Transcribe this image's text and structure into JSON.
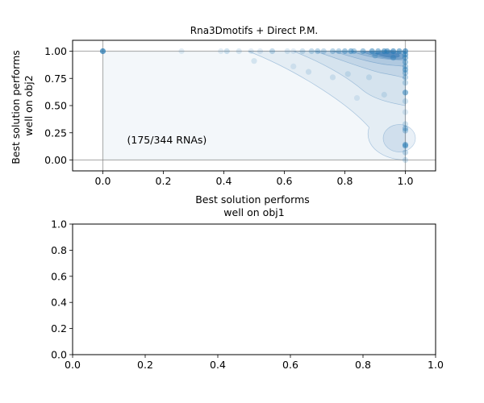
{
  "chart_data": [
    {
      "type": "scatter",
      "title": "Rna3Dmotifs + Direct P.M.",
      "xlabel": [
        "Best solution performs",
        "well on obj1"
      ],
      "ylabel": [
        "Best solution performs",
        "well on obj2"
      ],
      "xlim": [
        -0.1,
        1.1
      ],
      "ylim": [
        -0.1,
        1.1
      ],
      "xticks": [
        0.0,
        0.2,
        0.4,
        0.6,
        0.8,
        1.0
      ],
      "xtick_labels": [
        "0.0",
        "0.2",
        "0.4",
        "0.6",
        "0.8",
        "1.0"
      ],
      "yticks": [
        0.0,
        0.25,
        0.5,
        0.75,
        1.0
      ],
      "ytick_labels": [
        "0.00",
        "0.25",
        "0.50",
        "0.75",
        "1.00"
      ],
      "reference_lines": {
        "x": [
          0,
          1
        ],
        "y": [
          0,
          1
        ]
      },
      "annotation": "(175/344 RNAs)",
      "annotation_at": [
        0.08,
        0.18
      ],
      "point_color": "#1f77b4",
      "contour_color": "#2b6fb0",
      "points": [
        [
          0.0,
          1.0,
          0.7
        ],
        [
          0.26,
          1.0,
          0.12
        ],
        [
          0.39,
          1.0,
          0.12
        ],
        [
          0.41,
          1.0,
          0.2
        ],
        [
          0.45,
          1.0,
          0.15
        ],
        [
          0.49,
          1.0,
          0.12
        ],
        [
          0.52,
          1.0,
          0.12
        ],
        [
          0.56,
          1.0,
          0.25
        ],
        [
          0.61,
          1.0,
          0.15
        ],
        [
          0.63,
          1.0,
          0.12
        ],
        [
          0.66,
          1.0,
          0.2
        ],
        [
          0.69,
          1.0,
          0.25
        ],
        [
          0.71,
          1.0,
          0.3
        ],
        [
          0.73,
          1.0,
          0.25
        ],
        [
          0.76,
          1.0,
          0.3
        ],
        [
          0.78,
          1.0,
          0.3
        ],
        [
          0.8,
          1.0,
          0.4
        ],
        [
          0.82,
          1.0,
          0.45
        ],
        [
          0.83,
          1.0,
          0.35
        ],
        [
          0.86,
          1.0,
          0.4
        ],
        [
          0.89,
          1.0,
          0.5
        ],
        [
          0.91,
          1.0,
          0.45
        ],
        [
          0.93,
          1.0,
          0.5
        ],
        [
          0.94,
          1.0,
          0.5
        ],
        [
          0.96,
          1.0,
          0.55
        ],
        [
          0.98,
          1.0,
          0.5
        ],
        [
          0.5,
          0.91,
          0.15
        ],
        [
          0.63,
          0.86,
          0.12
        ],
        [
          0.68,
          0.81,
          0.15
        ],
        [
          0.76,
          0.76,
          0.15
        ],
        [
          0.81,
          0.79,
          0.15
        ],
        [
          0.84,
          0.57,
          0.12
        ],
        [
          0.88,
          0.76,
          0.15
        ],
        [
          0.93,
          0.6,
          0.15
        ],
        [
          0.9,
          0.96,
          0.3
        ],
        [
          0.96,
          0.94,
          0.35
        ],
        [
          1.0,
          1.0,
          0.6
        ],
        [
          1.0,
          0.97,
          0.5
        ],
        [
          1.0,
          0.94,
          0.45
        ],
        [
          1.0,
          0.9,
          0.4
        ],
        [
          1.0,
          0.86,
          0.35
        ],
        [
          1.0,
          0.83,
          0.45
        ],
        [
          1.0,
          0.8,
          0.35
        ],
        [
          1.0,
          0.76,
          0.3
        ],
        [
          1.0,
          0.71,
          0.25
        ],
        [
          1.0,
          0.62,
          0.5
        ],
        [
          1.0,
          0.54,
          0.2
        ],
        [
          1.0,
          0.44,
          0.15
        ],
        [
          1.0,
          0.33,
          0.2
        ],
        [
          1.0,
          0.29,
          0.35
        ],
        [
          1.0,
          0.27,
          0.3
        ],
        [
          1.0,
          0.14,
          0.45
        ],
        [
          1.0,
          0.13,
          0.4
        ],
        [
          1.0,
          0.07,
          0.25
        ],
        [
          1.0,
          0.0,
          0.2
        ]
      ]
    },
    {
      "type": "scatter",
      "xlim": [
        0.0,
        1.0
      ],
      "ylim": [
        0.0,
        1.0
      ],
      "xticks": [
        0.0,
        0.2,
        0.4,
        0.6,
        0.8,
        1.0
      ],
      "xtick_labels": [
        "0.0",
        "0.2",
        "0.4",
        "0.6",
        "0.8",
        "1.0"
      ],
      "yticks": [
        0.0,
        0.2,
        0.4,
        0.6,
        0.8,
        1.0
      ],
      "ytick_labels": [
        "0.0",
        "0.2",
        "0.4",
        "0.6",
        "0.8",
        "1.0"
      ],
      "points": []
    }
  ]
}
